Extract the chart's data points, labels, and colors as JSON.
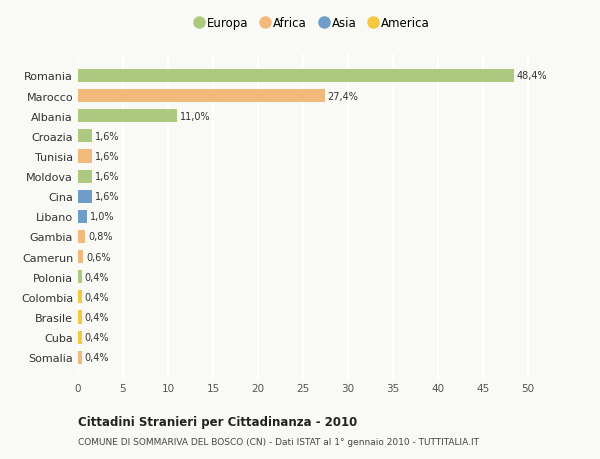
{
  "countries": [
    "Romania",
    "Marocco",
    "Albania",
    "Croazia",
    "Tunisia",
    "Moldova",
    "Cina",
    "Libano",
    "Gambia",
    "Camerun",
    "Polonia",
    "Colombia",
    "Brasile",
    "Cuba",
    "Somalia"
  ],
  "values": [
    48.4,
    27.4,
    11.0,
    1.6,
    1.6,
    1.6,
    1.6,
    1.0,
    0.8,
    0.6,
    0.4,
    0.4,
    0.4,
    0.4,
    0.4
  ],
  "labels": [
    "48,4%",
    "27,4%",
    "11,0%",
    "1,6%",
    "1,6%",
    "1,6%",
    "1,6%",
    "1,0%",
    "0,8%",
    "0,6%",
    "0,4%",
    "0,4%",
    "0,4%",
    "0,4%",
    "0,4%"
  ],
  "colors": [
    "#adc97f",
    "#f2b97c",
    "#adc97f",
    "#adc97f",
    "#f2b97c",
    "#adc97f",
    "#6e9dc9",
    "#6e9dc9",
    "#f2b97c",
    "#f2b97c",
    "#adc97f",
    "#f5c842",
    "#f5c842",
    "#f5c842",
    "#f2b97c"
  ],
  "legend": [
    {
      "label": "Europa",
      "color": "#adc97f"
    },
    {
      "label": "Africa",
      "color": "#f2b97c"
    },
    {
      "label": "Asia",
      "color": "#6e9dc9"
    },
    {
      "label": "America",
      "color": "#f5c842"
    }
  ],
  "title": "Cittadini Stranieri per Cittadinanza - 2010",
  "subtitle": "COMUNE DI SOMMARIVA DEL BOSCO (CN) - Dati ISTAT al 1° gennaio 2010 - TUTTITALIA.IT",
  "xlim": [
    0,
    52
  ],
  "xticks": [
    0,
    5,
    10,
    15,
    20,
    25,
    30,
    35,
    40,
    45,
    50
  ],
  "background_color": "#f9f9f6",
  "grid_color": "#ffffff",
  "bar_height": 0.65
}
